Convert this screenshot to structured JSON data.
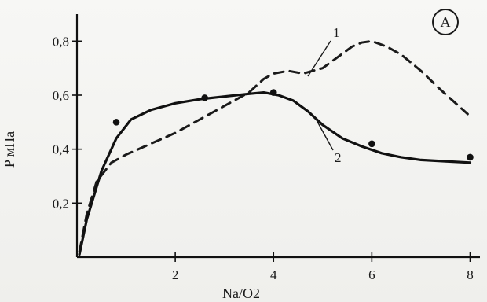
{
  "chart_data": {
    "type": "line",
    "panel_label": "A",
    "xlabel": "Na/O2",
    "ylabel": "P мПа",
    "xlim": [
      0,
      8.2
    ],
    "ylim": [
      0,
      0.9
    ],
    "xticks": [
      2,
      4,
      6,
      8
    ],
    "yticks": [
      0.2,
      0.4,
      0.6,
      0.8
    ],
    "xtick_labels": [
      "2",
      "4",
      "6",
      "8"
    ],
    "ytick_labels": [
      "0,2",
      "0,4",
      "0,6",
      "0,8"
    ],
    "series": [
      {
        "name": "1",
        "style": "dashed",
        "x": [
          0.05,
          0.2,
          0.4,
          0.7,
          1.0,
          1.5,
          2.0,
          2.5,
          3.0,
          3.5,
          3.8,
          4.0,
          4.3,
          4.6,
          5.0,
          5.3,
          5.6,
          5.8,
          6.0,
          6.3,
          6.6,
          7.0,
          7.4,
          7.95
        ],
        "y": [
          0.02,
          0.16,
          0.28,
          0.35,
          0.38,
          0.42,
          0.46,
          0.51,
          0.56,
          0.61,
          0.66,
          0.68,
          0.69,
          0.68,
          0.7,
          0.74,
          0.78,
          0.795,
          0.8,
          0.78,
          0.75,
          0.69,
          0.62,
          0.53
        ]
      },
      {
        "name": "2",
        "style": "solid",
        "x": [
          0.05,
          0.2,
          0.5,
          0.8,
          1.1,
          1.5,
          2.0,
          2.5,
          3.0,
          3.5,
          3.8,
          4.1,
          4.4,
          4.7,
          5.0,
          5.4,
          5.8,
          6.2,
          6.6,
          7.0,
          7.5,
          8.0
        ],
        "y": [
          0.01,
          0.14,
          0.32,
          0.44,
          0.51,
          0.545,
          0.57,
          0.585,
          0.595,
          0.605,
          0.61,
          0.6,
          0.58,
          0.54,
          0.49,
          0.44,
          0.41,
          0.385,
          0.37,
          0.36,
          0.355,
          0.35
        ]
      }
    ],
    "points": {
      "x": [
        0.8,
        2.6,
        4.0,
        6.0,
        8.0
      ],
      "y": [
        0.5,
        0.59,
        0.61,
        0.42,
        0.37
      ]
    },
    "grid": false
  }
}
